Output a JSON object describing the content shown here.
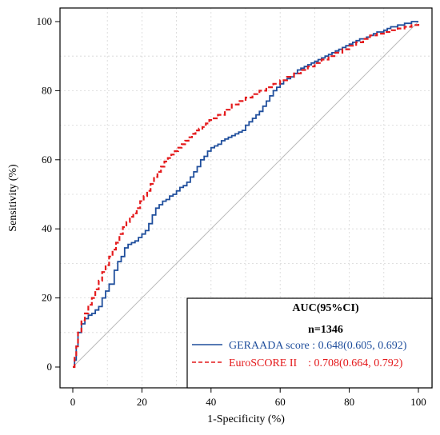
{
  "chart_data": {
    "type": "line",
    "xlabel": "1-Specificity (%)",
    "ylabel": "Sensitivity (%)",
    "xlim": [
      0,
      100
    ],
    "ylim": [
      0,
      100
    ],
    "xticks": [
      0,
      20,
      40,
      60,
      80,
      100
    ],
    "yticks": [
      0,
      20,
      40,
      60,
      80,
      100
    ],
    "grid": true,
    "legend_position": "bottom-right",
    "legend": {
      "title": "AUC(95%CI)",
      "subtitle": "n=1346",
      "entries": [
        {
          "label": "GERAADA score : 0.648(0.605, 0.692)",
          "color": "#1f4e9c",
          "style": "solid"
        },
        {
          "label": "EuroSCORE II    : 0.708(0.664, 0.792)",
          "color": "#e41a1c",
          "style": "dashed"
        }
      ]
    },
    "series": [
      {
        "name": "GERAADA score",
        "color": "#1f4e9c",
        "style": "solid",
        "x": [
          0,
          0.5,
          1,
          1.5,
          2.5,
          3.5,
          4.5,
          5.5,
          6.5,
          7.5,
          8.5,
          9.5,
          10.5,
          12,
          13,
          14,
          15,
          16,
          17,
          18,
          19,
          20,
          21,
          22,
          23,
          24,
          25,
          26,
          27,
          28,
          29,
          30,
          31,
          32,
          33,
          34,
          35,
          36,
          37,
          38,
          39,
          40,
          41,
          42,
          43,
          44,
          45,
          46,
          47,
          48,
          49,
          50,
          51,
          52,
          53,
          54,
          55,
          56,
          57,
          58,
          59,
          60,
          61,
          62,
          63,
          64,
          65,
          66,
          67,
          68,
          69,
          70,
          71,
          72,
          73,
          74,
          75,
          76,
          77,
          78,
          79,
          80,
          81,
          82,
          83,
          84,
          85,
          86,
          87,
          88,
          89,
          90,
          91,
          92,
          93,
          94,
          95,
          96,
          97,
          98,
          99,
          100
        ],
        "y": [
          0,
          2,
          6,
          10,
          12.5,
          14,
          15,
          15.5,
          16.5,
          17.5,
          20,
          22,
          24,
          28,
          30.5,
          32,
          34.5,
          35.5,
          36,
          36.5,
          37.5,
          38.5,
          39.5,
          41.5,
          44,
          46,
          47,
          48,
          48.5,
          49.5,
          50,
          51,
          52,
          52.5,
          53.5,
          55,
          56.5,
          58,
          60,
          61,
          62.5,
          63.5,
          64,
          64.5,
          65.5,
          66,
          66.5,
          67,
          67.5,
          68,
          68.5,
          70,
          71,
          72,
          73,
          74,
          75.5,
          77,
          78.5,
          80,
          81,
          82,
          83,
          83.5,
          84,
          85,
          86,
          86.5,
          87,
          87.5,
          88,
          88.5,
          89,
          89.5,
          90,
          90.5,
          91,
          91.5,
          92,
          92.5,
          93,
          93.5,
          94,
          94.5,
          95,
          95,
          95.5,
          96,
          96.5,
          97,
          97,
          97.5,
          98,
          98.5,
          98.5,
          99,
          99,
          99.5,
          99.5,
          100,
          100,
          100
        ]
      },
      {
        "name": "EuroSCORE II",
        "color": "#e41a1c",
        "style": "dashed",
        "x": [
          0,
          0.5,
          1,
          1.5,
          2.5,
          3.5,
          4.5,
          5.5,
          6.5,
          7.5,
          8.5,
          9.5,
          10.5,
          11.5,
          12.5,
          13.5,
          14.5,
          15.5,
          16.5,
          17.5,
          18.5,
          19.5,
          20.5,
          21.5,
          22.5,
          23.5,
          24.5,
          25.5,
          26.5,
          27.5,
          28.5,
          29.5,
          30.5,
          31.5,
          32.5,
          33.5,
          34.5,
          35.5,
          36.5,
          37.5,
          38.5,
          39.5,
          40.5,
          42,
          44,
          46,
          48,
          50,
          52,
          54,
          56,
          58,
          60,
          62,
          64,
          66,
          68,
          70,
          72,
          74,
          76,
          78,
          80,
          82,
          84,
          86,
          88,
          90,
          92,
          94,
          96,
          98,
          100
        ],
        "y": [
          0,
          3,
          6,
          10,
          13.5,
          15.5,
          18,
          20,
          22.5,
          25,
          27.5,
          29.5,
          32,
          34,
          36,
          38.5,
          40.5,
          42,
          43.5,
          44.5,
          46,
          48,
          49.5,
          51,
          53,
          55,
          56.5,
          58,
          59.5,
          60.5,
          61.5,
          62.5,
          63.5,
          64.5,
          65.5,
          66.5,
          67.5,
          68.5,
          69,
          69.5,
          70.5,
          71.5,
          72,
          73,
          74.5,
          76,
          77,
          78,
          79,
          80,
          81,
          82,
          83,
          84,
          85,
          86,
          87,
          88,
          89,
          90,
          91,
          92,
          93,
          94,
          95,
          96,
          96.5,
          97,
          97.5,
          98,
          98.5,
          99,
          100
        ]
      }
    ],
    "reference_line": {
      "x": [
        0,
        100
      ],
      "y": [
        0,
        100
      ],
      "color": "#bbbbbb"
    }
  }
}
